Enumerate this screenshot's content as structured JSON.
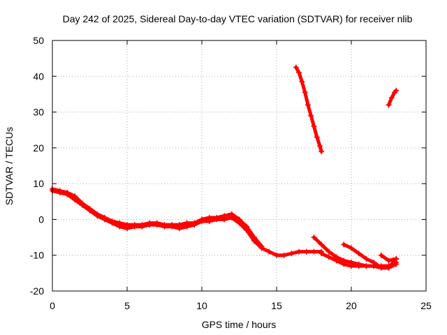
{
  "chart_data": {
    "type": "scatter",
    "title": "Day 242 of 2025, Sidereal Day-to-day VTEC variation (SDTVAR) for receiver nlib",
    "xlabel": "GPS time / hours",
    "ylabel": "SDTVAR / TECUs",
    "xlim": [
      0,
      25
    ],
    "ylim": [
      -20,
      50
    ],
    "xticks": [
      0,
      5,
      10,
      15,
      20,
      25
    ],
    "yticks": [
      -20,
      -10,
      0,
      10,
      20,
      30,
      40,
      50
    ],
    "xtick_labels": [
      "0",
      "5",
      "10",
      "15",
      "20",
      "25"
    ],
    "ytick_labels": [
      "-20",
      "-10",
      "0",
      "10",
      "20",
      "30",
      "40",
      "50"
    ],
    "grid": true,
    "grid_style": "dotted",
    "marker": "+",
    "marker_color": "#ff0000",
    "series": [
      {
        "name": "track-main",
        "x": [
          0,
          0.5,
          1,
          1.5,
          2,
          2.5,
          3,
          3.5,
          4,
          4.5,
          5,
          5.5,
          6,
          6.5,
          7,
          7.5,
          8,
          8.5,
          9,
          9.5,
          10,
          10.5,
          11,
          11.5,
          12,
          12.5,
          13,
          13.5,
          14,
          14.5,
          15,
          15.5,
          16,
          16.5,
          17,
          17.5,
          18
        ],
        "y": [
          8,
          7.5,
          7,
          5.5,
          4,
          2.5,
          1,
          0,
          -1,
          -2,
          -2.5,
          -2,
          -2,
          -1.5,
          -1.5,
          -2,
          -2,
          -2.5,
          -2,
          -1.5,
          -0.5,
          -0.5,
          0,
          0,
          0.5,
          -1,
          -3,
          -6,
          -8,
          -9,
          -10,
          -10,
          -9.5,
          -9,
          -9,
          -9,
          -9
        ]
      },
      {
        "name": "track-offset",
        "x": [
          0,
          0.5,
          1,
          1.5,
          2,
          2.5,
          3,
          3.5,
          4,
          4.5,
          5,
          5.5,
          6,
          6.5,
          7,
          7.5,
          8,
          8.5,
          9,
          9.5,
          10,
          10.5,
          11,
          11.5,
          12,
          12.5,
          13,
          13.5,
          14
        ],
        "y": [
          8.5,
          8,
          7.5,
          6.5,
          4.5,
          3,
          1.5,
          0.5,
          -0.5,
          -1,
          -1.5,
          -1.5,
          -1.5,
          -1,
          -1,
          -1.5,
          -1.5,
          -1.5,
          -1,
          -1,
          0,
          0.5,
          0.5,
          1,
          1.5,
          0,
          -2,
          -5,
          -7.5
        ]
      },
      {
        "name": "track-late-a",
        "x": [
          18,
          18.5,
          19,
          19.5,
          20,
          20.5,
          21,
          21.5,
          22,
          22.5,
          23
        ],
        "y": [
          -9.5,
          -10.5,
          -11.5,
          -12.5,
          -13,
          -13,
          -13,
          -13,
          -13,
          -13,
          -12
        ]
      },
      {
        "name": "track-late-b",
        "x": [
          17.5,
          18,
          18.5,
          19,
          19.5,
          20,
          20.5,
          21,
          21.5,
          22,
          22.5,
          23
        ],
        "y": [
          -5,
          -7,
          -9,
          -10.5,
          -11.5,
          -12,
          -12.5,
          -13,
          -13,
          -13.5,
          -13.5,
          -11
        ]
      },
      {
        "name": "track-late-c",
        "x": [
          19.5,
          20,
          20.5,
          21,
          21.5,
          22,
          22.5,
          23
        ],
        "y": [
          -7,
          -8,
          -9.5,
          -11,
          -12,
          -13.5,
          -13.5,
          -12.5
        ]
      },
      {
        "name": "track-late-d",
        "x": [
          22,
          22.5,
          23
        ],
        "y": [
          -10,
          -11.5,
          -11
        ]
      },
      {
        "name": "arc-steep",
        "x": [
          16.3,
          16.5,
          16.7,
          16.9,
          17.1,
          17.3,
          17.5,
          17.7,
          17.9,
          18
        ],
        "y": [
          42.5,
          41,
          38.5,
          35.5,
          32,
          29,
          26,
          23,
          20.5,
          19
        ]
      },
      {
        "name": "arc-short",
        "x": [
          22.5,
          22.7,
          22.9,
          23
        ],
        "y": [
          32,
          34,
          35.5,
          36
        ]
      }
    ]
  }
}
